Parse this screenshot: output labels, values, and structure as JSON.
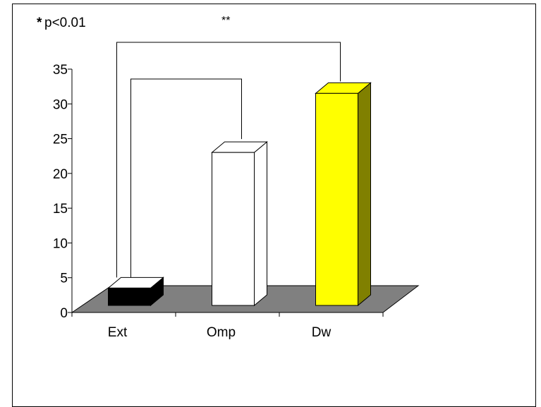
{
  "chart_data": {
    "type": "bar",
    "style": "3d",
    "categories": [
      "Ext",
      "Omp",
      "Dw"
    ],
    "values": [
      2.5,
      22,
      30.5
    ],
    "ylim": [
      0,
      35
    ],
    "yticks": [
      0,
      5,
      10,
      15,
      20,
      25,
      30,
      35
    ],
    "ytick_labels": [
      "0",
      "5",
      "10",
      "15",
      "20",
      "25",
      "30",
      "35"
    ],
    "grid": false,
    "bar_colors": [
      "#000000",
      "#ffffff",
      "#ffff00"
    ],
    "bar_side_colors": [
      "#000000",
      "#ffffff",
      "#808000"
    ],
    "floor_color": "#808080",
    "annotations": {
      "p_note_star": "*",
      "p_note_text": "p<0.01",
      "significance_marker": "**"
    }
  }
}
